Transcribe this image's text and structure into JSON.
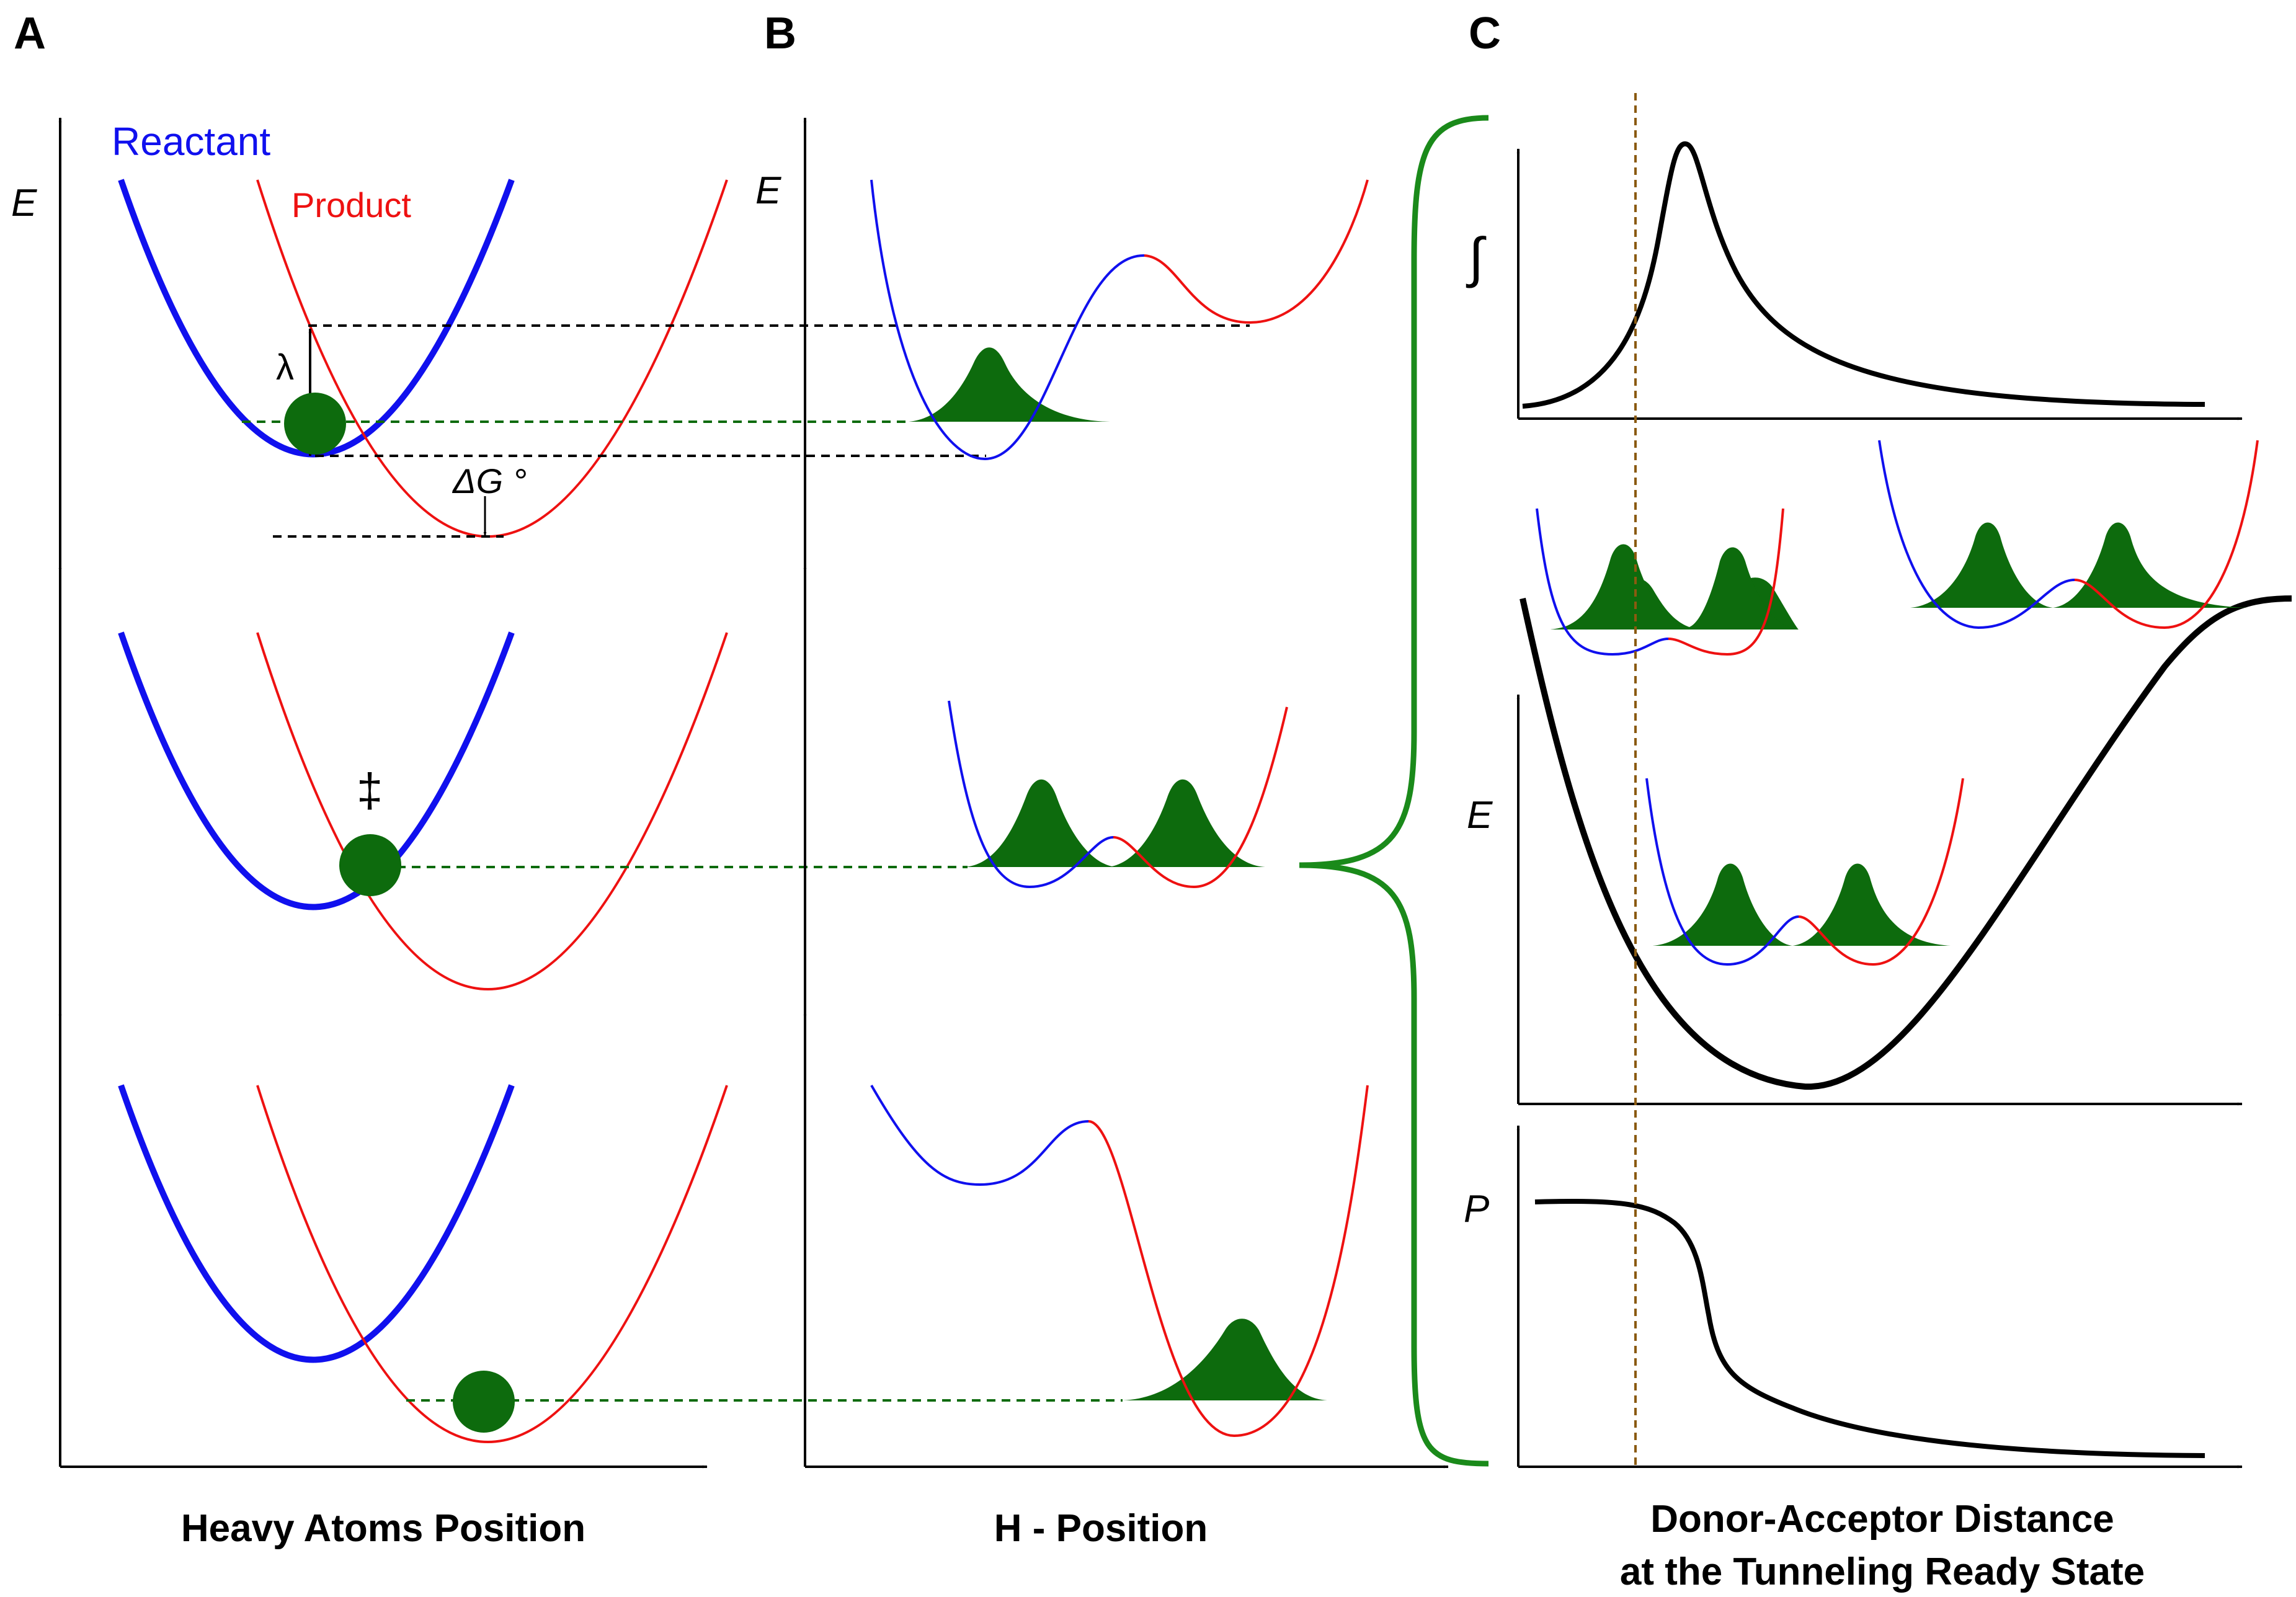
{
  "colors": {
    "reactant": "#1010ee",
    "product": "#ee1111",
    "wavepacket": "#0d6b0d",
    "axis": "#000000",
    "brace": "#1a8a1a",
    "guide": "#8a5a10"
  },
  "panels": {
    "a": {
      "letter": "A",
      "xlabel": "Heavy Atoms Position",
      "ylabel": "E",
      "reactant_label": "Reactant",
      "product_label": "Product",
      "lambda_label": "λ",
      "dg_label": "ΔG °",
      "ts_label": "‡"
    },
    "b": {
      "letter": "B",
      "xlabel": "H - Position",
      "ylabel": "E"
    },
    "c": {
      "letter": "C",
      "xlabel_line1": "Donor-Acceptor Distance",
      "xlabel_line2": "at the Tunneling Ready State",
      "top_ylabel": "∫",
      "mid_ylabel": "E",
      "bottom_ylabel": "P"
    }
  }
}
